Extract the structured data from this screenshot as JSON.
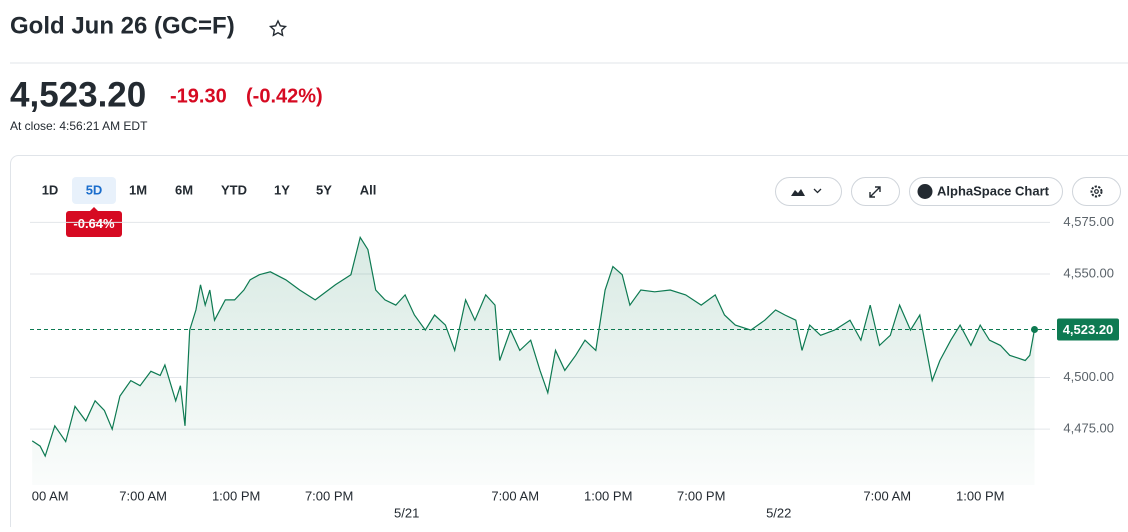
{
  "header": {
    "title": "Gold Jun 26 (GC=F)",
    "price": "4,523.20",
    "change": "-19.30",
    "change_percent": "(-0.42%)",
    "close_time": "At close: 4:56:21 AM EDT"
  },
  "toolbar": {
    "ranges": [
      "1D",
      "5D",
      "1M",
      "6M",
      "YTD",
      "1Y",
      "5Y",
      "All"
    ],
    "active_index": 1,
    "range_change": "-0.64%",
    "chart_button": "AlphaSpace Chart"
  },
  "chart_data": {
    "type": "area",
    "color": "#0e7a52",
    "x": [
      -0.16,
      0.35,
      0.68,
      1.3,
      2,
      2.6,
      3.3,
      3.9,
      4.5,
      5,
      5.5,
      6.2,
      6.8,
      7.5,
      8.1,
      8.4,
      9.1,
      9.4,
      9.7,
      10,
      10.4,
      10.7,
      11,
      11.3,
      11.6,
      12.3,
      12.9,
      13.5,
      13.9,
      14.5,
      15.2,
      16.2,
      17.1,
      18.1,
      19.4,
      20.4,
      21,
      21.5,
      22,
      22.6,
      23.3,
      23.9,
      24.5,
      25.2,
      25.8,
      26.5,
      27.1,
      27.8,
      28.4,
      29.1,
      29.7,
      30,
      30.7,
      31.3,
      32,
      32.6,
      33.1,
      33.6,
      34.2,
      34.9,
      35.5,
      36.2,
      36.8,
      37.3,
      37.9,
      38.4,
      39.1,
      40,
      41,
      42,
      43,
      43.9,
      44.5,
      45.2,
      46.2,
      47.1,
      47.8,
      48.4,
      49.1,
      49.5,
      50,
      50.7,
      51.6,
      52.6,
      53.3,
      53.9,
      54.5,
      55.2,
      55.8,
      56.5,
      57.1,
      57.9,
      58.4,
      59.1,
      59.7,
      60.4,
      61,
      61.6,
      62.3,
      62.9,
      63.9,
      64.2,
      64.5
    ],
    "values": [
      4469.3,
      4466.8,
      4462,
      4476.6,
      4469,
      4486,
      4479,
      4488.7,
      4484,
      4475,
      4491,
      4498.5,
      4496,
      4503,
      4501,
      4506,
      4488.7,
      4496,
      4476.6,
      4522.9,
      4532.6,
      4544.8,
      4535,
      4542.3,
      4527.7,
      4537.5,
      4537.5,
      4542.3,
      4547.2,
      4549.7,
      4551.1,
      4547.2,
      4542.3,
      4537.5,
      4544.8,
      4549.7,
      4567.7,
      4561.8,
      4542.3,
      4537.5,
      4535,
      4539.9,
      4530.2,
      4522.9,
      4530.2,
      4525.3,
      4513.1,
      4537.5,
      4527.7,
      4539.9,
      4535,
      4508.2,
      4522.9,
      4513.1,
      4518,
      4503.4,
      4492.6,
      4513.1,
      4503.4,
      4510.7,
      4518,
      4513.1,
      4542.3,
      4553.6,
      4549.7,
      4535,
      4542.3,
      4541.4,
      4542.3,
      4539.9,
      4535,
      4539.9,
      4530.2,
      4525.3,
      4522.9,
      4527.7,
      4532.6,
      4530.2,
      4527.7,
      4513.1,
      4525.3,
      4520.4,
      4522.9,
      4527.7,
      4518,
      4535,
      4515.5,
      4520.4,
      4535,
      4522.9,
      4530.2,
      4498.5,
      4508.2,
      4518,
      4525.3,
      4515.5,
      4525.3,
      4518,
      4515.5,
      4510.7,
      4508.2,
      4510.7,
      4523.2
    ],
    "xlim": [
      -0.3,
      65.5
    ],
    "ylim": [
      4448,
      4580
    ],
    "xticks": [
      {
        "value": 1,
        "label": "00 AM"
      },
      {
        "value": 7,
        "label": "7:00 AM"
      },
      {
        "value": 13,
        "label": "1:00 PM"
      },
      {
        "value": 19,
        "label": "7:00 PM"
      },
      {
        "value": 31,
        "label": "7:00 AM"
      },
      {
        "value": 37,
        "label": "1:00 PM"
      },
      {
        "value": 43,
        "label": "7:00 PM"
      },
      {
        "value": 55,
        "label": "7:00 AM"
      },
      {
        "value": 61,
        "label": "1:00 PM"
      }
    ],
    "date_ticks": [
      {
        "value": 24,
        "label": "5/21"
      },
      {
        "value": 48,
        "label": "5/22"
      }
    ],
    "yticks": [
      {
        "value": 4475,
        "label": "4,475.00"
      },
      {
        "value": 4500,
        "label": "4,500.00"
      },
      {
        "value": 4550,
        "label": "4,550.00"
      },
      {
        "value": 4575,
        "label": "4,575.00"
      }
    ],
    "grid": true,
    "current_value": 4523.2,
    "current_label": "4,523.20"
  }
}
